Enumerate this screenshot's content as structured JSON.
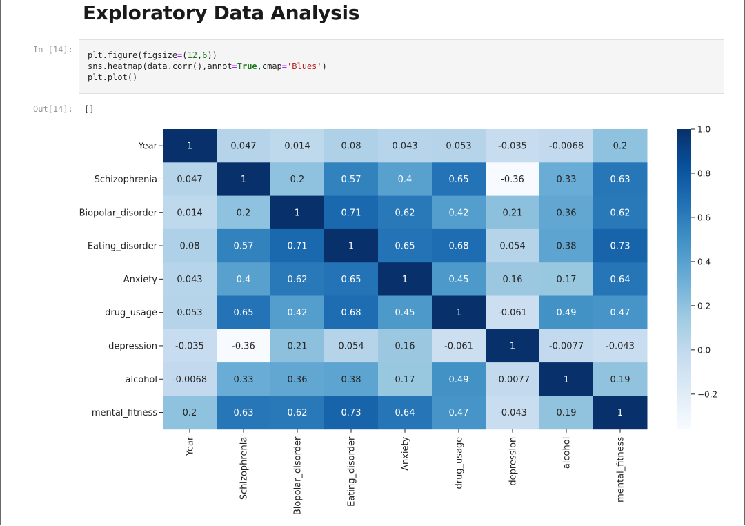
{
  "page": {
    "heading": "Exploratory Data Analysis"
  },
  "cell": {
    "in_prompt": "In [14]:",
    "out_prompt": "Out[14]:",
    "output_text": "[]",
    "code": [
      [
        {
          "t": "plt.figure(figsize"
        },
        {
          "t": "=",
          "c": "op"
        },
        {
          "t": "("
        },
        {
          "t": "12",
          "c": "num"
        },
        {
          "t": ","
        },
        {
          "t": "6",
          "c": "num"
        },
        {
          "t": "))"
        }
      ],
      [
        {
          "t": "sns.heatmap(data.corr(),annot"
        },
        {
          "t": "=",
          "c": "op"
        },
        {
          "t": "True",
          "c": "kw"
        },
        {
          "t": ",cmap"
        },
        {
          "t": "=",
          "c": "op"
        },
        {
          "t": "'Blues'",
          "c": "str"
        },
        {
          "t": ")"
        }
      ],
      [
        {
          "t": "plt.plot()"
        }
      ]
    ]
  },
  "chart_data": {
    "type": "heatmap",
    "colormap": "Blues",
    "categories": [
      "Year",
      "Schizophrenia",
      "Biopolar_disorder",
      "Eating_disorder",
      "Anxiety",
      "drug_usage",
      "depression",
      "alcohol",
      "mental_fitness"
    ],
    "values": [
      [
        1,
        0.047,
        0.014,
        0.08,
        0.043,
        0.053,
        -0.035,
        -0.0068,
        0.2
      ],
      [
        0.047,
        1,
        0.2,
        0.57,
        0.4,
        0.65,
        -0.36,
        0.33,
        0.63
      ],
      [
        0.014,
        0.2,
        1,
        0.71,
        0.62,
        0.42,
        0.21,
        0.36,
        0.62
      ],
      [
        0.08,
        0.57,
        0.71,
        1,
        0.65,
        0.68,
        0.054,
        0.38,
        0.73
      ],
      [
        0.043,
        0.4,
        0.62,
        0.65,
        1,
        0.45,
        0.16,
        0.17,
        0.64
      ],
      [
        0.053,
        0.65,
        0.42,
        0.68,
        0.45,
        1,
        -0.061,
        0.49,
        0.47
      ],
      [
        -0.035,
        -0.36,
        0.21,
        0.054,
        0.16,
        -0.061,
        1,
        -0.0077,
        -0.043
      ],
      [
        -0.0068,
        0.33,
        0.36,
        0.38,
        0.17,
        0.49,
        -0.0077,
        1,
        0.19
      ],
      [
        0.2,
        0.63,
        0.62,
        0.73,
        0.64,
        0.47,
        -0.043,
        0.19,
        1
      ]
    ],
    "colorbar": {
      "vmin": -0.36,
      "vmax": 1.0,
      "ticks": [
        1.0,
        0.8,
        0.6,
        0.4,
        0.2,
        0.0,
        -0.2
      ],
      "tick_labels": [
        "1.0",
        "0.8",
        "0.6",
        "0.4",
        "0.2",
        "0.0",
        "−0.2"
      ]
    },
    "title": "",
    "xlabel": "",
    "ylabel": ""
  }
}
